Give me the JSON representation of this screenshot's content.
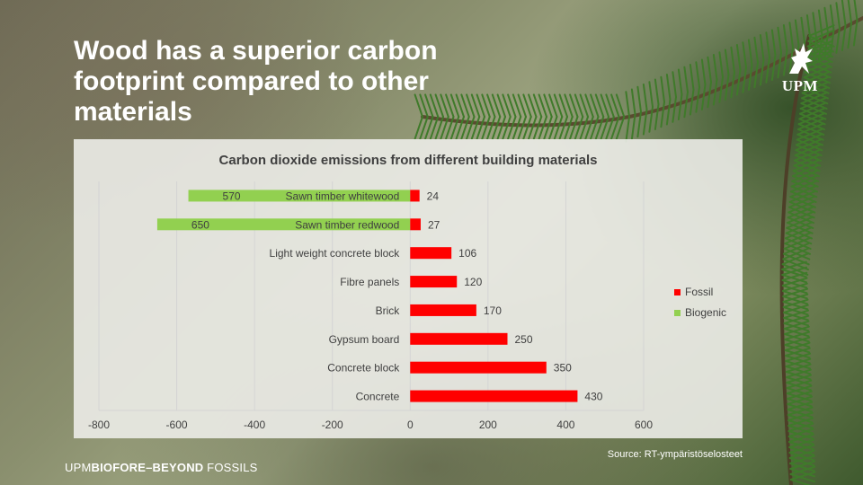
{
  "slide": {
    "title": "Wood has a superior carbon footprint compared to other materials",
    "logo_text": "UPM",
    "source": "Source: RT-ympäristöselosteet",
    "footer_light": "UPM",
    "footer_bold": "BIOFORE–BEYOND",
    "footer_end": " FOSSILS"
  },
  "colors": {
    "fossil": "#ff0000",
    "biogenic": "#92d050",
    "grid": "#d4d4d4",
    "text": "#404040"
  },
  "chart_data": {
    "type": "bar",
    "orientation": "horizontal",
    "title": "Carbon dioxide emissions from different building materials",
    "categories": [
      "Sawn timber whitewood",
      "Sawn timber redwood",
      "Light weight concrete block",
      "Fibre panels",
      "Brick",
      "Gypsum board",
      "Concrete block",
      "Concrete"
    ],
    "series": [
      {
        "name": "Fossil",
        "values": [
          24,
          27,
          106,
          120,
          170,
          250,
          350,
          430
        ],
        "labels": [
          "24",
          "27",
          "106",
          "120",
          "170",
          "250",
          "350",
          "430"
        ]
      },
      {
        "name": "Biogenic",
        "values": [
          -570,
          -650,
          null,
          null,
          null,
          null,
          null,
          null
        ],
        "labels": [
          "570",
          "650",
          "",
          "",
          "",
          "",
          "",
          ""
        ]
      }
    ],
    "xlim": [
      -800,
      600
    ],
    "xticks": [
      "-800",
      "-600",
      "-400",
      "-200",
      "0",
      "200",
      "400",
      "600"
    ],
    "grid": true,
    "legend": "right"
  }
}
